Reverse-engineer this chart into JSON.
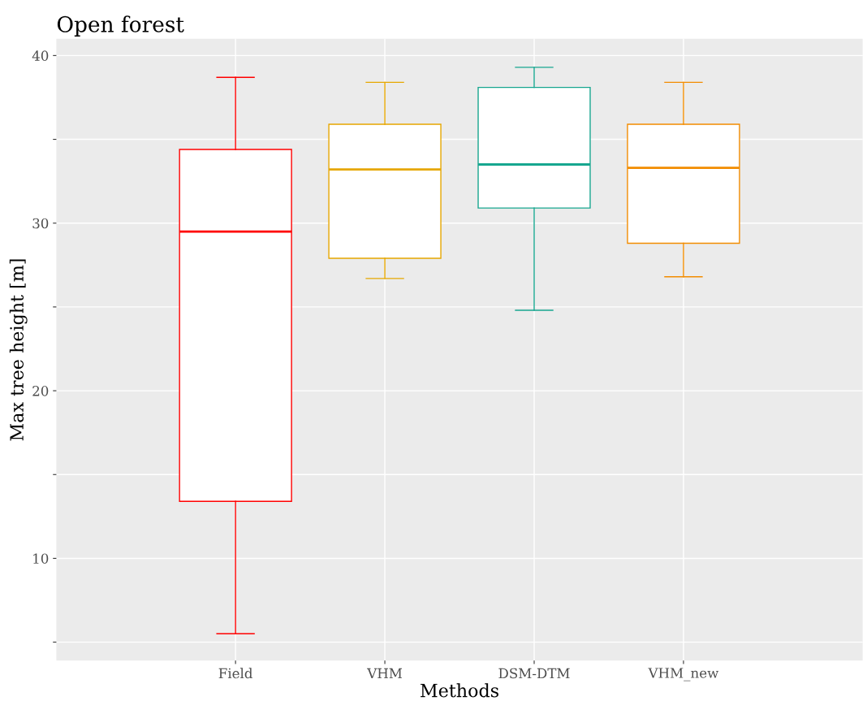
{
  "chart_data": {
    "type": "box",
    "title": "Open forest",
    "xlabel": "Methods",
    "ylabel": "Max tree height [m]",
    "categories": [
      "Field",
      "VHM",
      "DSM-DTM",
      "VHM_new"
    ],
    "colors": [
      "#ff0000",
      "#e6a700",
      "#17a68f",
      "#f28c00"
    ],
    "boxes": [
      {
        "low": 5.5,
        "q1": 13.4,
        "median": 29.5,
        "q3": 34.4,
        "high": 38.7
      },
      {
        "low": 26.7,
        "q1": 27.9,
        "median": 33.2,
        "q3": 35.9,
        "high": 38.4
      },
      {
        "low": 24.8,
        "q1": 30.9,
        "median": 33.5,
        "q3": 38.1,
        "high": 39.3
      },
      {
        "low": 26.8,
        "q1": 28.8,
        "median": 33.3,
        "q3": 35.9,
        "high": 38.4
      }
    ],
    "ylim": [
      3.9,
      41
    ],
    "yticks": [
      {
        "value": 5,
        "label": null
      },
      10,
      {
        "value": 15,
        "label": null
      },
      20,
      {
        "value": 25,
        "label": null
      },
      30,
      {
        "value": 35,
        "label": null
      },
      40
    ],
    "grid": true
  }
}
